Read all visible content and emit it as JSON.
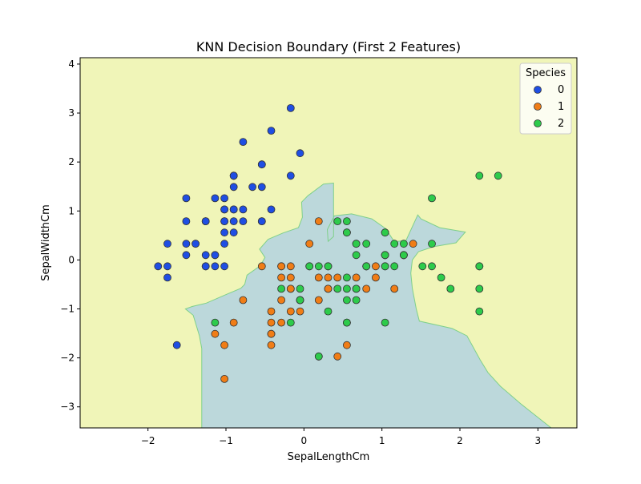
{
  "chart_data": {
    "type": "scatter",
    "title": "KNN Decision Boundary (First 2 Features)",
    "xlabel": "SepalLengthCm",
    "ylabel": "SepalWidthCm",
    "xlim": [
      -2.87,
      3.5
    ],
    "ylim": [
      -3.43,
      4.13
    ],
    "x_ticks": [
      -2,
      -1,
      0,
      1,
      2,
      3
    ],
    "y_ticks": [
      -3,
      -2,
      -1,
      0,
      1,
      2,
      3,
      4
    ],
    "grid": false,
    "legend": {
      "title": "Species",
      "placement": "top-right"
    },
    "colors": {
      "region_0": "#c7b8d2",
      "region_1": "#bcd8db",
      "region_2": "#f0f5b8",
      "boundary": "#7fd08a",
      "point_0": "#1f4ee3",
      "point_1": "#f07d16",
      "point_2": "#2dcb4b",
      "point_edge": "#333333"
    },
    "regions": [
      {
        "class": "0",
        "polygon": [
          [
            -2.87,
            4.13
          ],
          [
            0.81,
            4.13
          ],
          [
            0.81,
            4.13
          ],
          [
            -2.87,
            4.13
          ]
        ]
      },
      {
        "class": "1",
        "polygon": [
          [
            -1.31,
            -3.43
          ],
          [
            -1.31,
            -1.81
          ],
          [
            -1.34,
            -1.55
          ],
          [
            -1.42,
            -1.13
          ],
          [
            -1.52,
            -1.0
          ],
          [
            -1.43,
            -0.95
          ],
          [
            -1.25,
            -0.88
          ],
          [
            -1.02,
            -0.72
          ],
          [
            -0.81,
            -0.58
          ],
          [
            -0.76,
            -0.5
          ],
          [
            -0.73,
            -0.31
          ],
          [
            -0.56,
            -0.12
          ],
          [
            -0.5,
            0.05
          ],
          [
            -0.57,
            0.22
          ],
          [
            -0.46,
            0.42
          ],
          [
            -0.27,
            0.55
          ],
          [
            -0.07,
            0.66
          ],
          [
            -0.02,
            0.87
          ],
          [
            -0.03,
            1.18
          ],
          [
            0.05,
            1.31
          ],
          [
            0.25,
            1.55
          ],
          [
            0.38,
            1.57
          ],
          [
            0.38,
            1.57
          ],
          [
            0.38,
            0.48
          ],
          [
            0.31,
            0.38
          ],
          [
            0.3,
            0.62
          ],
          [
            0.39,
            0.9
          ],
          [
            0.61,
            0.94
          ],
          [
            0.87,
            0.84
          ],
          [
            1.05,
            0.64
          ],
          [
            1.16,
            0.37
          ],
          [
            1.31,
            0.4
          ],
          [
            1.46,
            0.92
          ],
          [
            1.5,
            0.84
          ],
          [
            1.74,
            0.66
          ],
          [
            2.07,
            0.57
          ],
          [
            1.95,
            0.35
          ],
          [
            1.66,
            0.27
          ],
          [
            1.47,
            0.17
          ],
          [
            1.39,
            0.0
          ],
          [
            1.37,
            -0.27
          ],
          [
            1.39,
            -0.58
          ],
          [
            1.44,
            -1.0
          ],
          [
            1.48,
            -1.25
          ],
          [
            1.9,
            -1.4
          ],
          [
            2.09,
            -1.55
          ],
          [
            2.26,
            -2.04
          ],
          [
            2.36,
            -2.3
          ],
          [
            2.52,
            -2.58
          ],
          [
            2.79,
            -2.95
          ],
          [
            3.17,
            -3.43
          ]
        ]
      }
    ],
    "series": [
      {
        "name": "0",
        "points": [
          [
            -0.9,
            1.03
          ],
          [
            -1.14,
            -0.13
          ],
          [
            -1.39,
            0.33
          ],
          [
            -1.51,
            0.1
          ],
          [
            -1.02,
            1.26
          ],
          [
            -0.54,
            1.95
          ],
          [
            -1.51,
            0.79
          ],
          [
            -1.02,
            0.79
          ],
          [
            -1.75,
            -0.36
          ],
          [
            -1.14,
            0.1
          ],
          [
            -0.54,
            1.49
          ],
          [
            -1.26,
            0.79
          ],
          [
            -1.26,
            -0.13
          ],
          [
            -1.87,
            -0.13
          ],
          [
            -0.05,
            2.18
          ],
          [
            -0.17,
            3.1
          ],
          [
            -0.54,
            1.95
          ],
          [
            -0.9,
            1.03
          ],
          [
            -0.17,
            1.72
          ],
          [
            -0.9,
            1.72
          ],
          [
            -0.54,
            0.79
          ],
          [
            -0.9,
            1.49
          ],
          [
            -1.51,
            1.26
          ],
          [
            -0.9,
            0.56
          ],
          [
            -1.26,
            0.79
          ],
          [
            -1.02,
            -0.13
          ],
          [
            -1.02,
            0.79
          ],
          [
            -0.78,
            1.03
          ],
          [
            -0.78,
            0.79
          ],
          [
            -1.39,
            0.33
          ],
          [
            -1.26,
            0.1
          ],
          [
            -0.54,
            0.79
          ],
          [
            -0.78,
            2.41
          ],
          [
            -0.42,
            2.64
          ],
          [
            -1.14,
            0.1
          ],
          [
            -1.02,
            0.33
          ],
          [
            -0.42,
            1.03
          ],
          [
            -1.14,
            1.26
          ],
          [
            -1.75,
            -0.13
          ],
          [
            -0.9,
            0.79
          ],
          [
            -1.02,
            1.03
          ],
          [
            -1.63,
            -1.74
          ],
          [
            -1.75,
            0.33
          ],
          [
            -1.02,
            1.03
          ],
          [
            -0.9,
            1.72
          ],
          [
            -1.26,
            -0.13
          ],
          [
            -0.9,
            1.72
          ],
          [
            -1.51,
            0.33
          ],
          [
            -0.66,
            1.49
          ],
          [
            -1.02,
            0.56
          ]
        ]
      },
      {
        "name": "1",
        "points": [
          [
            1.4,
            0.33
          ],
          [
            0.67,
            0.33
          ],
          [
            1.28,
            0.1
          ],
          [
            -0.42,
            -1.74
          ],
          [
            0.8,
            -0.59
          ],
          [
            -0.17,
            -0.59
          ],
          [
            0.55,
            0.56
          ],
          [
            -1.14,
            -1.51
          ],
          [
            0.92,
            -0.36
          ],
          [
            -0.78,
            -0.82
          ],
          [
            -1.02,
            -2.43
          ],
          [
            0.07,
            -0.13
          ],
          [
            0.19,
            -1.97
          ],
          [
            0.31,
            -0.36
          ],
          [
            -0.29,
            -0.36
          ],
          [
            1.04,
            0.1
          ],
          [
            -0.29,
            -0.13
          ],
          [
            -0.05,
            -0.82
          ],
          [
            0.43,
            -1.97
          ],
          [
            -0.29,
            -1.28
          ],
          [
            0.07,
            0.33
          ],
          [
            0.31,
            -0.59
          ],
          [
            0.55,
            -1.28
          ],
          [
            0.31,
            -0.59
          ],
          [
            0.67,
            -0.36
          ],
          [
            0.92,
            -0.13
          ],
          [
            1.16,
            -0.59
          ],
          [
            1.04,
            -0.13
          ],
          [
            0.19,
            -0.36
          ],
          [
            -0.17,
            -1.05
          ],
          [
            -0.42,
            -1.51
          ],
          [
            -0.42,
            -1.51
          ],
          [
            -0.05,
            -0.82
          ],
          [
            0.19,
            -0.82
          ],
          [
            -0.54,
            -0.13
          ],
          [
            0.19,
            0.79
          ],
          [
            1.04,
            0.1
          ],
          [
            0.55,
            -1.74
          ],
          [
            -0.29,
            -0.13
          ],
          [
            -0.42,
            -1.28
          ],
          [
            -0.42,
            -1.05
          ],
          [
            0.31,
            -0.13
          ],
          [
            -0.05,
            -1.05
          ],
          [
            -1.02,
            -1.74
          ],
          [
            -0.29,
            -0.82
          ],
          [
            -0.17,
            -0.13
          ],
          [
            -0.17,
            -0.36
          ],
          [
            0.43,
            -0.36
          ],
          [
            -0.9,
            -1.28
          ],
          [
            -0.17,
            -0.59
          ]
        ]
      },
      {
        "name": "2",
        "points": [
          [
            0.55,
            0.56
          ],
          [
            -0.05,
            -0.82
          ],
          [
            1.52,
            -0.13
          ],
          [
            0.55,
            -0.36
          ],
          [
            0.8,
            -0.13
          ],
          [
            2.25,
            -0.13
          ],
          [
            -1.14,
            -1.28
          ],
          [
            1.76,
            -0.36
          ],
          [
            1.04,
            -1.28
          ],
          [
            1.64,
            1.26
          ],
          [
            0.8,
            0.33
          ],
          [
            0.67,
            -0.82
          ],
          [
            1.16,
            -0.13
          ],
          [
            -0.17,
            -1.28
          ],
          [
            -0.05,
            -0.59
          ],
          [
            0.67,
            0.33
          ],
          [
            0.8,
            -0.13
          ],
          [
            2.25,
            1.72
          ],
          [
            2.25,
            -1.05
          ],
          [
            0.19,
            -1.97
          ],
          [
            1.28,
            0.33
          ],
          [
            -0.29,
            -0.59
          ],
          [
            2.25,
            -0.59
          ],
          [
            0.55,
            -0.82
          ],
          [
            1.04,
            0.56
          ],
          [
            1.64,
            0.33
          ],
          [
            0.43,
            -0.59
          ],
          [
            0.31,
            -0.13
          ],
          [
            0.67,
            -0.59
          ],
          [
            1.64,
            -0.13
          ],
          [
            1.88,
            -0.59
          ],
          [
            2.49,
            1.72
          ],
          [
            0.67,
            -0.59
          ],
          [
            0.55,
            -0.59
          ],
          [
            0.31,
            -1.05
          ],
          [
            2.25,
            -0.13
          ],
          [
            0.55,
            0.79
          ],
          [
            0.67,
            0.1
          ],
          [
            0.19,
            -0.13
          ],
          [
            1.28,
            0.1
          ],
          [
            1.04,
            0.1
          ],
          [
            1.28,
            0.1
          ],
          [
            -0.05,
            -0.82
          ],
          [
            1.16,
            0.33
          ],
          [
            1.04,
            0.56
          ],
          [
            1.04,
            -0.13
          ],
          [
            0.55,
            -1.28
          ],
          [
            0.8,
            -0.13
          ],
          [
            0.43,
            0.79
          ],
          [
            0.07,
            -0.13
          ]
        ]
      }
    ]
  }
}
